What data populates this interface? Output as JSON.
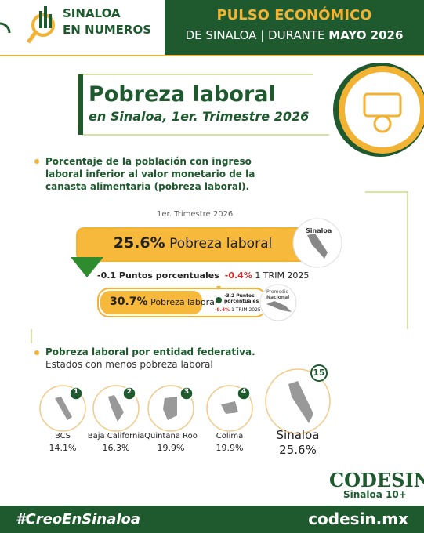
{
  "header": {
    "logo_line1": "SINALOA",
    "logo_line2": "EN NUMEROS",
    "title": "PULSO ECONÓMICO",
    "subtitle_prefix": "DE SINALOA | DURANTE",
    "subtitle_bold": "MAYO 2026"
  },
  "section": {
    "title": "Pobreza laboral",
    "subtitle": "en Sinaloa, 1er. Trimestre 2026"
  },
  "description": "Porcentaje de la población con ingreso laboral inferior al valor monetario de la canasta alimentaria (pobreza laboral).",
  "period": "1er. Trimestre 2026",
  "sinaloa": {
    "value": "25.6%",
    "label": "Pobreza laboral",
    "region": "Sinaloa",
    "change": "-0.1 Puntos porcentuales",
    "yoy": "-0.4%",
    "yoy_label": "1 TRIM 2025"
  },
  "national": {
    "value": "30.7%",
    "label": "Pobreza laboral",
    "change": "-3.2 Puntos porcentuales",
    "yoy": "-9.4%",
    "yoy_label": "1 TRIM 2025",
    "region_line1": "Promedio",
    "region_line2": "Nacional"
  },
  "states": {
    "title": "Pobreza laboral por entidad federativa.",
    "subtitle": "Estados con menos pobreza laboral",
    "items": [
      {
        "rank": "1",
        "name": "BCS",
        "value": "14.1%"
      },
      {
        "rank": "2",
        "name": "Baja California",
        "value": "16.3%"
      },
      {
        "rank": "3",
        "name": "Quintana Roo",
        "value": "19.9%"
      },
      {
        "rank": "4",
        "name": "Colima",
        "value": "19.9%"
      }
    ],
    "sinaloa": {
      "rank": "15",
      "name": "Sinaloa",
      "value": "25.6%"
    }
  },
  "footer": {
    "brand": "CODESIN",
    "brand_sub": "Sinaloa 10+",
    "hashtag": "#CreoEnSinaloa",
    "url": "codesin.mx"
  }
}
